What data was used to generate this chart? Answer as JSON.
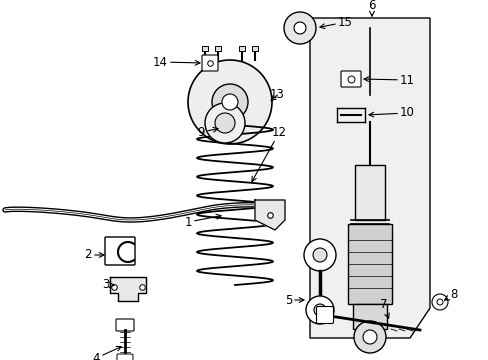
{
  "background_color": "#ffffff",
  "figsize": [
    4.89,
    3.6
  ],
  "dpi": 100,
  "line_color": "#000000",
  "text_color": "#000000",
  "label_fontsize": 8.5
}
